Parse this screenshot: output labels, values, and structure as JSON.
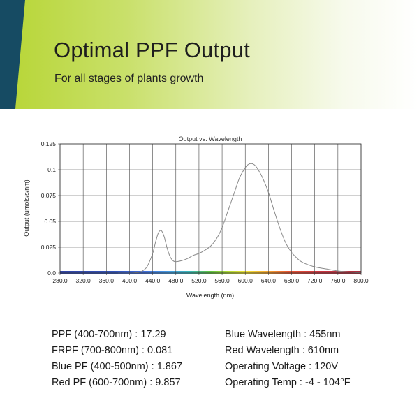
{
  "header": {
    "title": "Optimal PPF Output",
    "subtitle": "For all stages of plants growth"
  },
  "colors": {
    "accent_green": "#b6d533",
    "accent_navy": "#164b63",
    "curve": "#8a8a8a",
    "grid": "#444444"
  },
  "chart_data": {
    "type": "line",
    "title": "Output vs. Wavelength",
    "xlabel": "Wavelength (nm)",
    "ylabel": "Output (umols/s/nm)",
    "xlim": [
      280,
      800
    ],
    "ylim": [
      0,
      0.125
    ],
    "grid": true,
    "x_ticks": [
      "280.0",
      "320.0",
      "360.0",
      "400.0",
      "440.0",
      "480.0",
      "520.0",
      "560.0",
      "600.0",
      "640.0",
      "680.0",
      "720.0",
      "760.0",
      "800.0"
    ],
    "y_ticks": [
      "0.0",
      "0.025",
      "0.05",
      "0.075",
      "0.1",
      "0.125"
    ],
    "series": [
      {
        "x": [
          380,
          400,
          410,
          420,
          430,
          440,
          445,
          450,
          455,
          460,
          465,
          470,
          475,
          480,
          490,
          500,
          510,
          520,
          530,
          540,
          550,
          560,
          570,
          580,
          590,
          600,
          605,
          610,
          615,
          620,
          630,
          640,
          650,
          660,
          670,
          680,
          690,
          700,
          720,
          740,
          760,
          780,
          800
        ],
        "y": [
          0,
          0,
          0.0003,
          0.0015,
          0.006,
          0.019,
          0.03,
          0.039,
          0.041,
          0.035,
          0.024,
          0.016,
          0.012,
          0.011,
          0.012,
          0.014,
          0.017,
          0.019,
          0.022,
          0.026,
          0.033,
          0.044,
          0.06,
          0.076,
          0.092,
          0.102,
          0.105,
          0.106,
          0.105,
          0.102,
          0.092,
          0.078,
          0.06,
          0.043,
          0.029,
          0.02,
          0.014,
          0.01,
          0.006,
          0.004,
          0.002,
          0.001,
          0.0006
        ]
      }
    ]
  },
  "specs_left": [
    "PPF (400-700nm) : 17.29",
    "FRPF (700-800nm) : 0.081",
    "Blue PF (400-500nm) : 1.867",
    "Red PF (600-700nm) : 9.857"
  ],
  "specs_right": [
    "Blue Wavelength : 455nm",
    "Red Wavelength : 610nm",
    "Operating Voltage : 120V",
    "Operating Temp : -4 - 104°F"
  ]
}
